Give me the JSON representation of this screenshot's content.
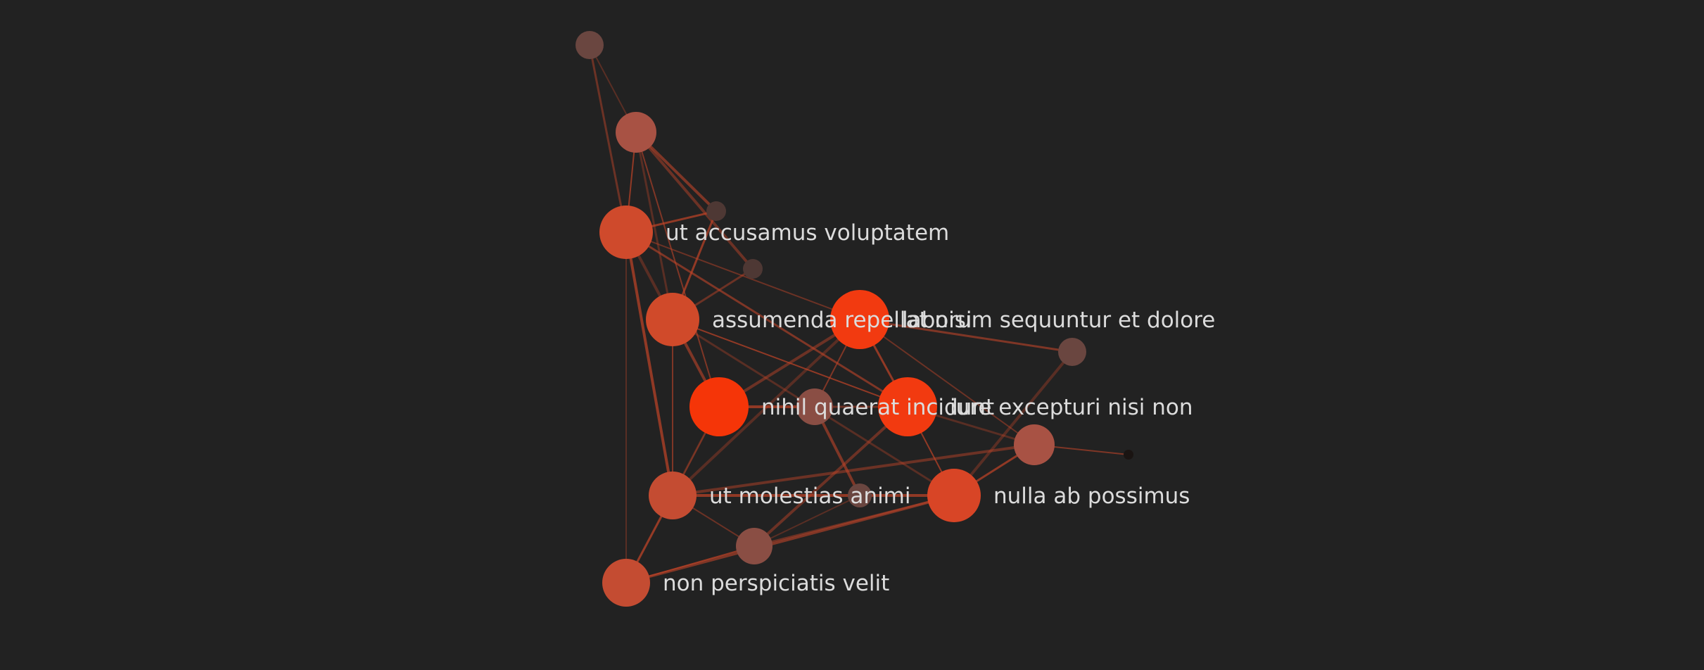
{
  "colors": {
    "background": "#222222",
    "label": "#dcdcdc",
    "edge": "#c04428"
  },
  "graph": {
    "nodes": [
      {
        "id": "n1",
        "label": "",
        "color": "#6a4640"
      },
      {
        "id": "n2",
        "label": "",
        "color": "#a85244"
      },
      {
        "id": "n3",
        "label": "",
        "color": "#4e3834"
      },
      {
        "id": "n4",
        "label": "ut accusamus voluptatem",
        "color": "#cf4a2c"
      },
      {
        "id": "n5",
        "label": "",
        "color": "#4e3834"
      },
      {
        "id": "n6",
        "label": "assumenda repellat nisi",
        "color": "#d04a2a"
      },
      {
        "id": "n7",
        "label": "laborum sequuntur et dolore",
        "color": "#f23a10"
      },
      {
        "id": "n8",
        "label": "",
        "color": "#6a4640"
      },
      {
        "id": "n9",
        "label": "nihil quaerat incidunt",
        "color": "#f53508"
      },
      {
        "id": "n10",
        "label": "",
        "color": "#8a4e44"
      },
      {
        "id": "n11",
        "label": "iure excepturi nisi non",
        "color": "#f23a10"
      },
      {
        "id": "n12",
        "label": "",
        "color": "#a85244"
      },
      {
        "id": "n13",
        "label": "",
        "color": "#1a1412"
      },
      {
        "id": "n14",
        "label": "ut molestias animi",
        "color": "#c44c32"
      },
      {
        "id": "n15",
        "label": "",
        "color": "#6a4640"
      },
      {
        "id": "n16",
        "label": "nulla ab possimus",
        "color": "#d84526"
      },
      {
        "id": "n17",
        "label": "",
        "color": "#8a4e44"
      },
      {
        "id": "n18",
        "label": "non perspiciatis velit",
        "color": "#c44c32"
      }
    ],
    "edges": [
      [
        "n1",
        "n2"
      ],
      [
        "n1",
        "n4"
      ],
      [
        "n2",
        "n3"
      ],
      [
        "n2",
        "n4"
      ],
      [
        "n2",
        "n6"
      ],
      [
        "n2",
        "n5"
      ],
      [
        "n2",
        "n9"
      ],
      [
        "n3",
        "n4"
      ],
      [
        "n4",
        "n6"
      ],
      [
        "n4",
        "n7"
      ],
      [
        "n4",
        "n11"
      ],
      [
        "n4",
        "n14"
      ],
      [
        "n4",
        "n18"
      ],
      [
        "n5",
        "n6"
      ],
      [
        "n6",
        "n9"
      ],
      [
        "n6",
        "n11"
      ],
      [
        "n6",
        "n16"
      ],
      [
        "n7",
        "n9"
      ],
      [
        "n7",
        "n10"
      ],
      [
        "n7",
        "n11"
      ],
      [
        "n7",
        "n14"
      ],
      [
        "n7",
        "n12"
      ],
      [
        "n7",
        "n8"
      ],
      [
        "n9",
        "n10"
      ],
      [
        "n9",
        "n14"
      ],
      [
        "n10",
        "n11"
      ],
      [
        "n10",
        "n15"
      ],
      [
        "n11",
        "n16"
      ],
      [
        "n11",
        "n12"
      ],
      [
        "n11",
        "n17"
      ],
      [
        "n12",
        "n13"
      ],
      [
        "n12",
        "n16"
      ],
      [
        "n8",
        "n16"
      ],
      [
        "n14",
        "n17"
      ],
      [
        "n14",
        "n18"
      ],
      [
        "n14",
        "n16"
      ],
      [
        "n15",
        "n17"
      ],
      [
        "n16",
        "n17"
      ],
      [
        "n16",
        "n18"
      ],
      [
        "n17",
        "n18"
      ],
      [
        "n9",
        "n18"
      ],
      [
        "n12",
        "n14"
      ],
      [
        "n6",
        "n14"
      ],
      [
        "n3",
        "n6"
      ]
    ]
  }
}
